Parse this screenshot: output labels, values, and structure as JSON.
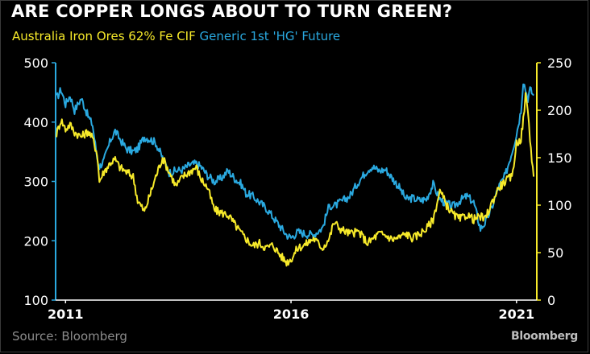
{
  "header": {
    "title": "ARE COPPER LONGS ABOUT TO TURN GREEN?",
    "series_label_1": "Australia Iron Ores 62% Fe CIF",
    "series_label_2": "Generic 1st 'HG' Future"
  },
  "footer": {
    "source": "Source: Bloomberg",
    "brand": "Bloomberg"
  },
  "colors": {
    "background": "#000000",
    "iron_ore": "#f7ea2a",
    "copper": "#2aa9e0",
    "text": "#ffffff",
    "muted": "#8c8c8c"
  },
  "chart_data": {
    "type": "line",
    "x_ticks": [
      "2011",
      "2016",
      "2021"
    ],
    "xlim": [
      2010.78,
      2021.45
    ],
    "y_left": {
      "ylim": [
        100,
        500
      ],
      "ticks": [
        100,
        200,
        300,
        400,
        500
      ],
      "axis_color": "#2aa9e0"
    },
    "y_right": {
      "ylim": [
        0,
        250
      ],
      "ticks": [
        0,
        50,
        100,
        150,
        200,
        250
      ],
      "axis_color": "#f7ea2a"
    },
    "grid": false,
    "series": [
      {
        "name": "Generic 1st 'HG' Future",
        "axis": "left",
        "x": [
          2010.8,
          2010.9,
          2011.0,
          2011.1,
          2011.2,
          2011.35,
          2011.5,
          2011.6,
          2011.7,
          2011.75,
          2011.85,
          2012.0,
          2012.1,
          2012.2,
          2012.35,
          2012.5,
          2012.6,
          2012.75,
          2012.9,
          2013.0,
          2013.15,
          2013.3,
          2013.45,
          2013.6,
          2013.75,
          2013.9,
          2014.0,
          2014.15,
          2014.3,
          2014.45,
          2014.6,
          2014.75,
          2014.9,
          2015.0,
          2015.15,
          2015.3,
          2015.45,
          2015.6,
          2015.75,
          2015.9,
          2016.0,
          2016.15,
          2016.3,
          2016.5,
          2016.7,
          2016.85,
          2016.95,
          2017.1,
          2017.3,
          2017.5,
          2017.7,
          2017.8,
          2017.95,
          2018.1,
          2018.25,
          2018.4,
          2018.55,
          2018.7,
          2018.85,
          2019.0,
          2019.15,
          2019.3,
          2019.45,
          2019.6,
          2019.75,
          2019.9,
          2020.05,
          2020.2,
          2020.3,
          2020.45,
          2020.6,
          2020.75,
          2020.9,
          2021.0,
          2021.1,
          2021.15,
          2021.2,
          2021.25,
          2021.3,
          2021.38
        ],
        "y": [
          440,
          455,
          430,
          445,
          420,
          440,
          410,
          395,
          340,
          325,
          335,
          370,
          385,
          372,
          355,
          350,
          355,
          375,
          370,
          365,
          340,
          315,
          318,
          320,
          328,
          330,
          325,
          310,
          300,
          305,
          318,
          305,
          295,
          280,
          275,
          265,
          255,
          240,
          225,
          210,
          205,
          215,
          212,
          210,
          222,
          260,
          258,
          265,
          275,
          300,
          320,
          325,
          318,
          320,
          305,
          290,
          270,
          272,
          268,
          270,
          295,
          270,
          262,
          258,
          268,
          275,
          265,
          220,
          230,
          255,
          290,
          310,
          350,
          380,
          420,
          470,
          455,
          440,
          455,
          445
        ]
      },
      {
        "name": "Australia Iron Ores 62% Fe CIF",
        "axis": "right",
        "x": [
          2010.8,
          2010.9,
          2011.0,
          2011.1,
          2011.2,
          2011.35,
          2011.5,
          2011.6,
          2011.7,
          2011.75,
          2011.85,
          2012.0,
          2012.1,
          2012.2,
          2012.35,
          2012.5,
          2012.6,
          2012.75,
          2012.9,
          2013.0,
          2013.15,
          2013.3,
          2013.45,
          2013.6,
          2013.75,
          2013.9,
          2014.0,
          2014.15,
          2014.3,
          2014.45,
          2014.6,
          2014.75,
          2014.9,
          2015.0,
          2015.15,
          2015.3,
          2015.45,
          2015.6,
          2015.75,
          2015.9,
          2016.0,
          2016.15,
          2016.3,
          2016.5,
          2016.7,
          2016.85,
          2016.95,
          2017.1,
          2017.3,
          2017.5,
          2017.7,
          2017.8,
          2017.95,
          2018.1,
          2018.25,
          2018.4,
          2018.55,
          2018.7,
          2018.85,
          2019.0,
          2019.15,
          2019.3,
          2019.45,
          2019.6,
          2019.75,
          2019.9,
          2020.05,
          2020.2,
          2020.3,
          2020.45,
          2020.6,
          2020.75,
          2020.9,
          2021.0,
          2021.1,
          2021.15,
          2021.2,
          2021.25,
          2021.3,
          2021.38
        ],
        "y": [
          175,
          190,
          180,
          185,
          177,
          172,
          178,
          170,
          155,
          125,
          135,
          145,
          148,
          140,
          135,
          130,
          105,
          93,
          115,
          130,
          150,
          135,
          120,
          130,
          135,
          140,
          128,
          118,
          95,
          92,
          90,
          80,
          70,
          65,
          57,
          60,
          55,
          58,
          48,
          40,
          43,
          55,
          58,
          65,
          55,
          65,
          82,
          75,
          70,
          72,
          60,
          64,
          70,
          68,
          64,
          66,
          70,
          65,
          70,
          75,
          85,
          115,
          100,
          90,
          85,
          90,
          85,
          88,
          85,
          102,
          118,
          125,
          130,
          165,
          170,
          190,
          215,
          200,
          170,
          130
        ]
      }
    ]
  }
}
